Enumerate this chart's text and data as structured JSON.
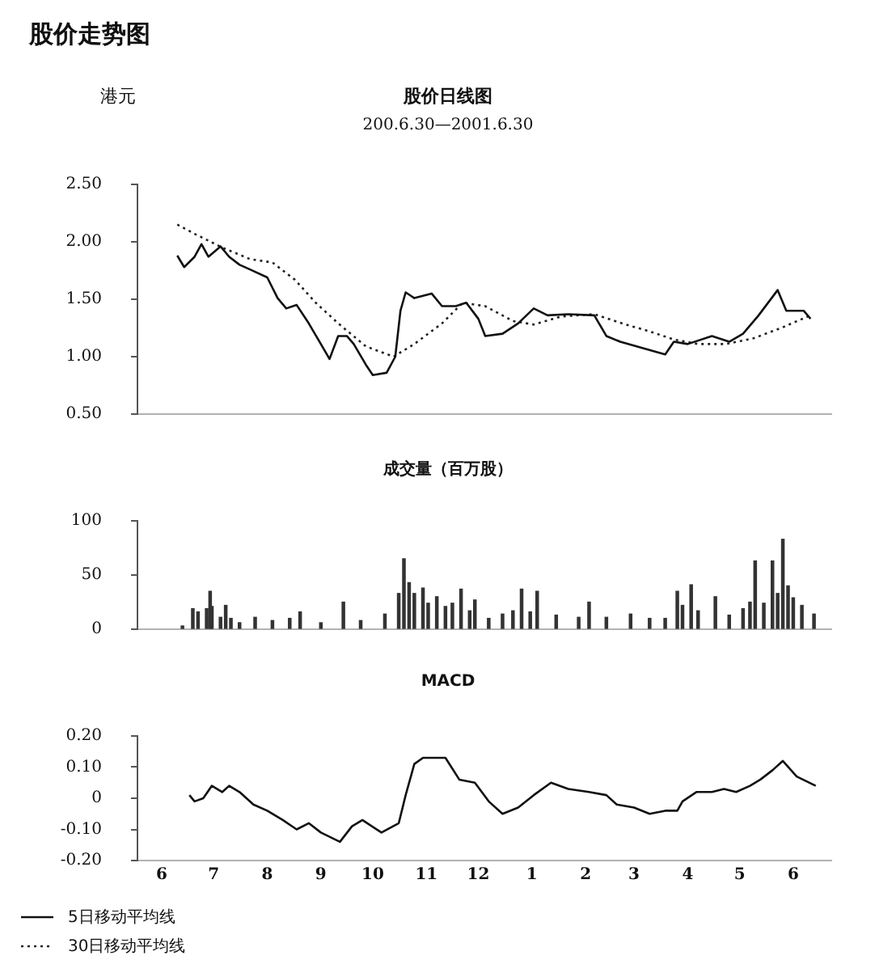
{
  "chart_data": [
    {
      "type": "line",
      "title": "股价走势图",
      "subtitle": "股价日线图",
      "ylabel": "港元",
      "annotations": [
        "200.6.30—2001.6.30"
      ],
      "legend": "bottom left",
      "marker": "none",
      "tick_labels": "y",
      "xlim": [
        "2000-06-01",
        "2001-07-07"
      ],
      "ylim": [
        0.5,
        2.5
      ],
      "yticks": [
        {
          "value": 0.5,
          "label": "0.50"
        },
        {
          "value": 1,
          "label": "1.00"
        },
        {
          "value": 1.5,
          "label": "1.50"
        },
        {
          "value": 2,
          "label": "2.00"
        },
        {
          "value": 2.5,
          "label": "2.50"
        }
      ],
      "series": [
        {
          "name": "5日移动平均线",
          "color": "#111111",
          "line_style": "solid",
          "x": [
            "2000-06-24",
            "2000-06-28",
            "2000-07-04",
            "2000-07-08",
            "2000-07-12",
            "2000-07-19",
            "2000-07-24",
            "2000-07-30",
            "2000-08-05",
            "2000-08-15",
            "2000-08-21",
            "2000-08-26",
            "2000-09-01",
            "2000-09-08",
            "2000-09-15",
            "2000-09-20",
            "2000-09-25",
            "2000-09-30",
            "2000-10-04",
            "2000-10-11",
            "2000-10-15",
            "2000-10-23",
            "2000-10-28",
            "2000-10-31",
            "2000-11-03",
            "2000-11-08",
            "2000-11-18",
            "2000-11-24",
            "2000-12-02",
            "2000-12-08",
            "2000-12-15",
            "2000-12-19",
            "2000-12-29",
            "2001-01-07",
            "2001-01-16",
            "2001-01-24",
            "2001-02-05",
            "2001-02-20",
            "2001-02-27",
            "2001-03-07",
            "2001-03-21",
            "2001-04-02",
            "2001-04-07",
            "2001-04-15",
            "2001-04-29",
            "2001-05-09",
            "2001-05-17",
            "2001-05-26",
            "2001-06-06",
            "2001-06-11",
            "2001-06-21",
            "2001-06-25"
          ],
          "values": [
            1.88,
            1.78,
            1.87,
            1.98,
            1.87,
            1.96,
            1.87,
            1.8,
            1.76,
            1.69,
            1.51,
            1.42,
            1.45,
            1.29,
            1.11,
            0.98,
            1.18,
            1.18,
            1.11,
            0.93,
            0.84,
            0.86,
            1.0,
            1.4,
            1.56,
            1.51,
            1.55,
            1.44,
            1.44,
            1.47,
            1.33,
            1.18,
            1.2,
            1.29,
            1.42,
            1.36,
            1.37,
            1.36,
            1.18,
            1.13,
            1.07,
            1.02,
            1.13,
            1.11,
            1.18,
            1.13,
            1.2,
            1.36,
            1.58,
            1.4,
            1.4,
            1.33
          ]
        },
        {
          "name": "30日移动平均线",
          "color": "#222222",
          "line_style": "dotted",
          "x": [
            "2000-06-24",
            "2000-07-04",
            "2000-07-20",
            "2000-08-05",
            "2000-08-18",
            "2000-08-31",
            "2000-09-12",
            "2000-09-25",
            "2000-10-11",
            "2000-10-27",
            "2000-11-08",
            "2000-11-24",
            "2000-12-06",
            "2000-12-19",
            "2001-01-04",
            "2001-01-16",
            "2001-02-01",
            "2001-02-20",
            "2001-03-08",
            "2001-03-24",
            "2001-04-07",
            "2001-04-21",
            "2001-05-07",
            "2001-05-23",
            "2001-06-08",
            "2001-06-25"
          ],
          "values": [
            2.15,
            2.07,
            1.95,
            1.85,
            1.82,
            1.67,
            1.47,
            1.29,
            1.09,
            1.0,
            1.11,
            1.29,
            1.47,
            1.44,
            1.31,
            1.28,
            1.35,
            1.37,
            1.29,
            1.22,
            1.15,
            1.11,
            1.11,
            1.16,
            1.25,
            1.36
          ]
        }
      ]
    },
    {
      "type": "bar",
      "title": "成交量（百万股）",
      "tick_labels": "y",
      "xlim": [
        "2000-06-01",
        "2001-07-07"
      ],
      "ylim": [
        0,
        100
      ],
      "yticks": [
        0,
        50,
        100
      ],
      "color": "#333333",
      "x": [
        "2000-06-27",
        "2000-07-03",
        "2000-07-06",
        "2000-07-11",
        "2000-07-13",
        "2000-07-14",
        "2000-07-19",
        "2000-07-22",
        "2000-07-25",
        "2000-07-30",
        "2000-08-08",
        "2000-08-18",
        "2000-08-28",
        "2000-09-03",
        "2000-09-15",
        "2000-09-28",
        "2000-10-08",
        "2000-10-22",
        "2000-10-30",
        "2000-11-02",
        "2000-11-05",
        "2000-11-08",
        "2000-11-13",
        "2000-11-16",
        "2000-11-21",
        "2000-11-26",
        "2000-11-30",
        "2000-12-05",
        "2000-12-10",
        "2000-12-13",
        "2000-12-21",
        "2000-12-29",
        "2001-01-04",
        "2001-01-09",
        "2001-01-14",
        "2001-01-18",
        "2001-01-29",
        "2001-02-11",
        "2001-02-17",
        "2001-02-27",
        "2001-03-13",
        "2001-03-24",
        "2001-04-02",
        "2001-04-09",
        "2001-04-12",
        "2001-04-17",
        "2001-04-21",
        "2001-05-01",
        "2001-05-09",
        "2001-05-17",
        "2001-05-21",
        "2001-05-24",
        "2001-05-29",
        "2001-06-03",
        "2001-06-06",
        "2001-06-09",
        "2001-06-12",
        "2001-06-15",
        "2001-06-20",
        "2001-06-27"
      ],
      "values": [
        3,
        19,
        16,
        19,
        35,
        21,
        11,
        22,
        10,
        6,
        11,
        8,
        10,
        16,
        6,
        25,
        8,
        14,
        33,
        65,
        43,
        33,
        38,
        24,
        30,
        21,
        24,
        37,
        17,
        27,
        10,
        14,
        17,
        37,
        16,
        35,
        13,
        11,
        25,
        11,
        14,
        10,
        10,
        35,
        22,
        41,
        17,
        30,
        13,
        19,
        25,
        63,
        24,
        63,
        33,
        83,
        40,
        29,
        22,
        14
      ]
    },
    {
      "type": "line",
      "title": "MACD",
      "marker": "none",
      "xlim": [
        "2000-06-01",
        "2001-07-07"
      ],
      "xticks": [
        {
          "value": "2000-06-15",
          "label": "6"
        },
        {
          "value": "2000-07-15",
          "label": "7"
        },
        {
          "value": "2000-08-15",
          "label": "8"
        },
        {
          "value": "2000-09-15",
          "label": "9"
        },
        {
          "value": "2000-10-15",
          "label": "10"
        },
        {
          "value": "2000-11-15",
          "label": "11"
        },
        {
          "value": "2000-12-15",
          "label": "12"
        },
        {
          "value": "2001-01-15",
          "label": "1"
        },
        {
          "value": "2001-02-15",
          "label": "2"
        },
        {
          "value": "2001-03-15",
          "label": "3"
        },
        {
          "value": "2001-04-15",
          "label": "4"
        },
        {
          "value": "2001-05-15",
          "label": "5"
        },
        {
          "value": "2001-06-15",
          "label": "6"
        }
      ],
      "ylim": [
        -0.2,
        0.2
      ],
      "yticks": [
        {
          "value": -0.2,
          "label": "-0.20"
        },
        {
          "value": -0.1,
          "label": "-0.10"
        },
        {
          "value": 0,
          "label": "0"
        },
        {
          "value": 0.1,
          "label": "0.10"
        },
        {
          "value": 0.2,
          "label": "0.20"
        }
      ],
      "series": [
        {
          "color": "#111111",
          "x": [
            "2000-07-01",
            "2000-07-04",
            "2000-07-09",
            "2000-07-14",
            "2000-07-20",
            "2000-07-24",
            "2000-07-30",
            "2000-08-07",
            "2000-08-15",
            "2000-08-24",
            "2000-09-01",
            "2000-09-08",
            "2000-09-15",
            "2000-09-26",
            "2000-10-03",
            "2000-10-09",
            "2000-10-20",
            "2000-10-30",
            "2000-11-03",
            "2000-11-08",
            "2000-11-13",
            "2000-11-26",
            "2000-12-04",
            "2000-12-13",
            "2000-12-21",
            "2000-12-29",
            "2001-01-07",
            "2001-01-16",
            "2001-01-26",
            "2001-02-05",
            "2001-02-17",
            "2001-02-27",
            "2001-03-05",
            "2001-03-15",
            "2001-03-24",
            "2001-04-02",
            "2001-04-09",
            "2001-04-12",
            "2001-04-20",
            "2001-04-29",
            "2001-05-06",
            "2001-05-13",
            "2001-05-21",
            "2001-05-27",
            "2001-06-03",
            "2001-06-09",
            "2001-06-17",
            "2001-06-28"
          ],
          "values": [
            0.01,
            -0.01,
            0,
            0.04,
            0.02,
            0.04,
            0.02,
            -0.02,
            -0.04,
            -0.07,
            -0.1,
            -0.08,
            -0.11,
            -0.14,
            -0.09,
            -0.07,
            -0.11,
            -0.08,
            0.01,
            0.11,
            0.13,
            0.13,
            0.06,
            0.05,
            -0.01,
            -0.05,
            -0.03,
            0.01,
            0.05,
            0.03,
            0.02,
            0.01,
            -0.02,
            -0.03,
            -0.05,
            -0.04,
            -0.04,
            -0.01,
            0.02,
            0.02,
            0.03,
            0.02,
            0.04,
            0.06,
            0.09,
            0.12,
            0.07,
            0.04
          ]
        }
      ]
    }
  ]
}
